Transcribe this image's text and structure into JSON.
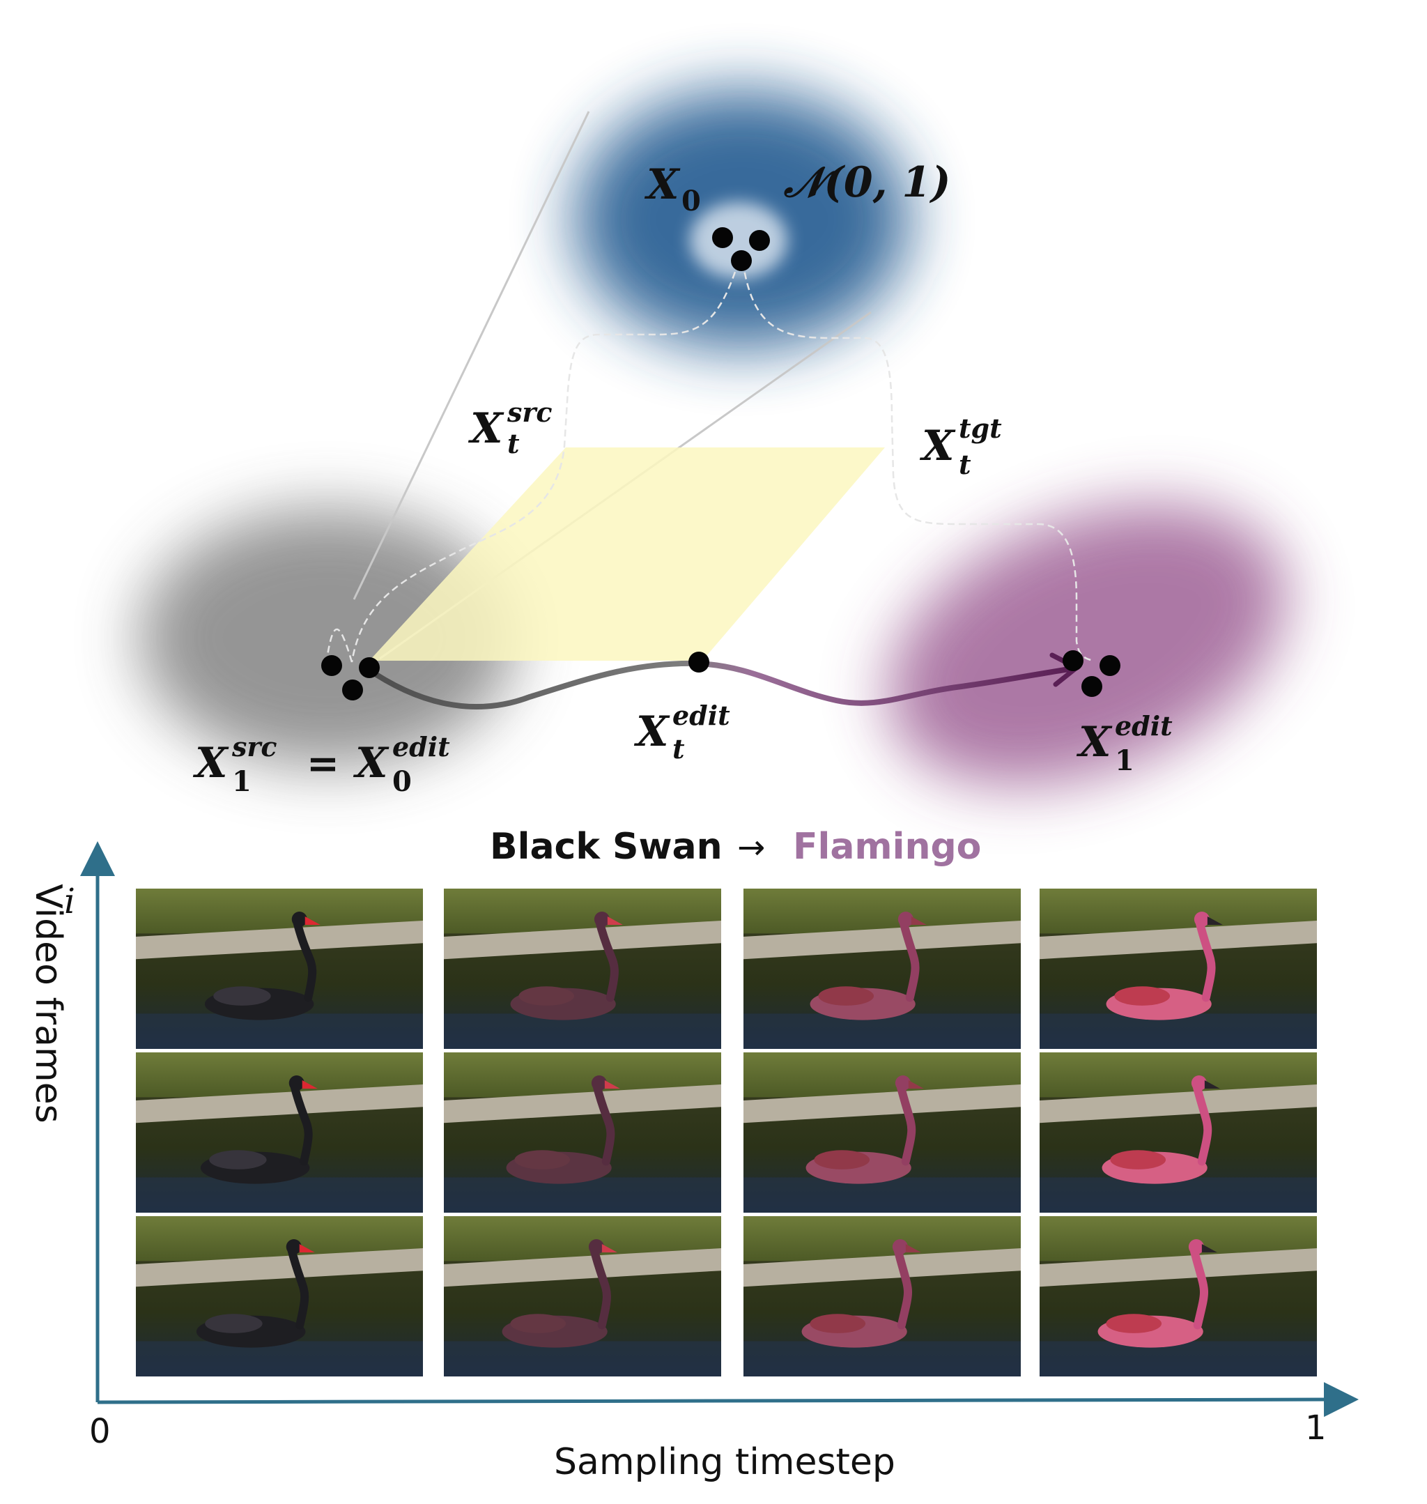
{
  "labels": {
    "x0": "X",
    "x0_sub": "0",
    "normal": "𝒩(0, 1)",
    "x_src_t": "X",
    "x_src_t_sup": "src",
    "x_src_t_sub": "t",
    "x_tgt_t": "X",
    "x_tgt_t_sup": "tgt",
    "x_tgt_t_sub": "t",
    "x_edit_t": "X",
    "x_edit_t_sup": "edit",
    "x_edit_t_sub": "t",
    "x_src_1": "X",
    "x_src_1_sup": "src",
    "x_src_1_sub": "1",
    "equals": "=",
    "x_edit_0": "X",
    "x_edit_0_sup": "edit",
    "x_edit_0_sub": "0",
    "x_edit_1": "X",
    "x_edit_1_sup": "edit",
    "x_edit_1_sub": "1"
  },
  "caption": {
    "source": "Black Swan",
    "arrow": "→",
    "target": "Flamingo"
  },
  "axes": {
    "y_label": "Video frames",
    "y_index": "i",
    "x_label": "Sampling  timestep",
    "x_start": "0",
    "x_end": "1"
  },
  "colors": {
    "noise": "#2f6496",
    "source": "#8a8a8a",
    "target": "#a46a9c",
    "plane": "#fbf7c0",
    "axis": "#2f6f8a",
    "caption_target": "#a072a0"
  },
  "grid": {
    "rows": 3,
    "columns": 4,
    "column_stages": [
      0,
      0.33,
      0.67,
      1
    ]
  }
}
